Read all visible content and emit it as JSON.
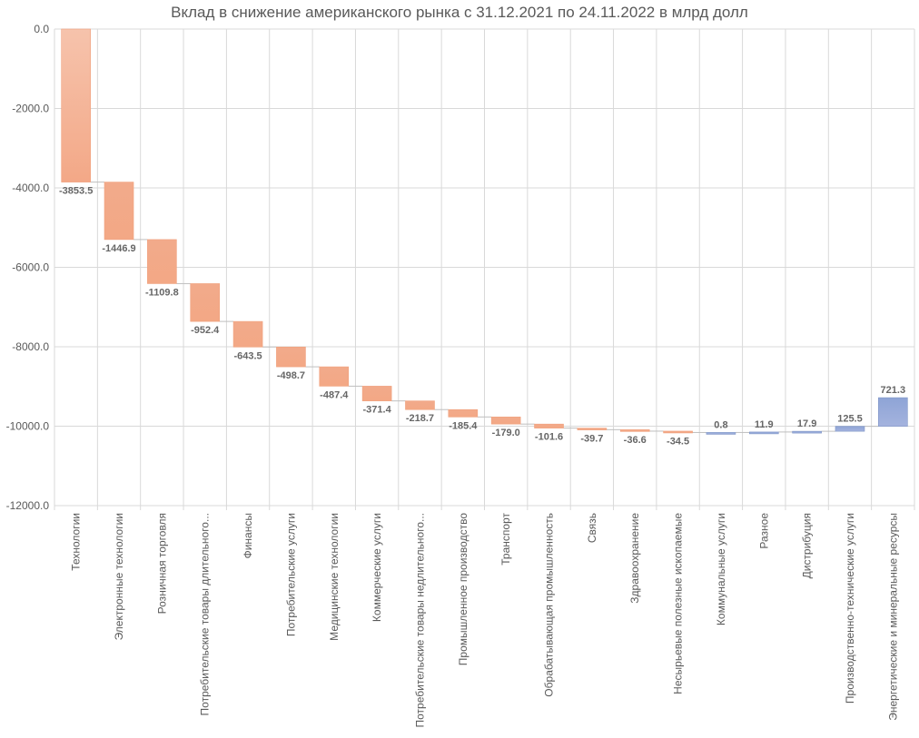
{
  "chart_data": {
    "type": "waterfall",
    "title": "Вклад в снижение американского рынка с 31.12.2021 по 24.11.2022 в млрд долл",
    "xlabel": "",
    "ylabel": "",
    "ylim": [
      -12000,
      0
    ],
    "yticks": [
      0,
      -2000,
      -4000,
      -6000,
      -8000,
      -10000,
      -12000
    ],
    "ytick_labels": [
      "0.0",
      "-2000.0",
      "-4000.0",
      "-6000.0",
      "-8000.0",
      "-10000.0",
      "-12000.0"
    ],
    "grid": true,
    "legend": "none",
    "colors": {
      "decrease": "#f4a582",
      "increase": "#92a8d1",
      "grid": "#d9d9d9",
      "axis_text": "#595959",
      "connector": "#bfbfbf"
    },
    "categories": [
      "Технологии",
      "Электронные технологии",
      "Розничная торговля",
      "Потребительские товары длительного...",
      "Финансы",
      "Потребительские услуги",
      "Медицинские технологии",
      "Коммерческие услуги",
      "Потребительские товары недлительного...",
      "Промышленное производство",
      "Транспорт",
      "Обрабатывающая промышленность",
      "Связь",
      "Здравоохранение",
      "Несырьевые полезные ископаемые",
      "Коммунальные услуги",
      "Разное",
      "Дистрибуция",
      "Производственно-технические услуги",
      "Энергетические и минеральные ресурсы"
    ],
    "values": [
      -3853.5,
      -1446.9,
      -1109.8,
      -952.4,
      -643.5,
      -498.7,
      -487.4,
      -371.4,
      -218.7,
      -185.4,
      -179.0,
      -101.6,
      -39.7,
      -36.6,
      -34.5,
      0.8,
      11.9,
      17.9,
      125.5,
      721.3
    ],
    "value_labels": [
      "-3853.5",
      "-1446.9",
      "-1109.8",
      "-952.4",
      "-643.5",
      "-498.7",
      "-487.4",
      "-371.4",
      "-218.7",
      "-185.4",
      "-179.0",
      "-101.6",
      "-39.7",
      "-36.6",
      "-34.5",
      "0.8",
      "11.9",
      "17.9",
      "125.5",
      "721.3"
    ]
  }
}
